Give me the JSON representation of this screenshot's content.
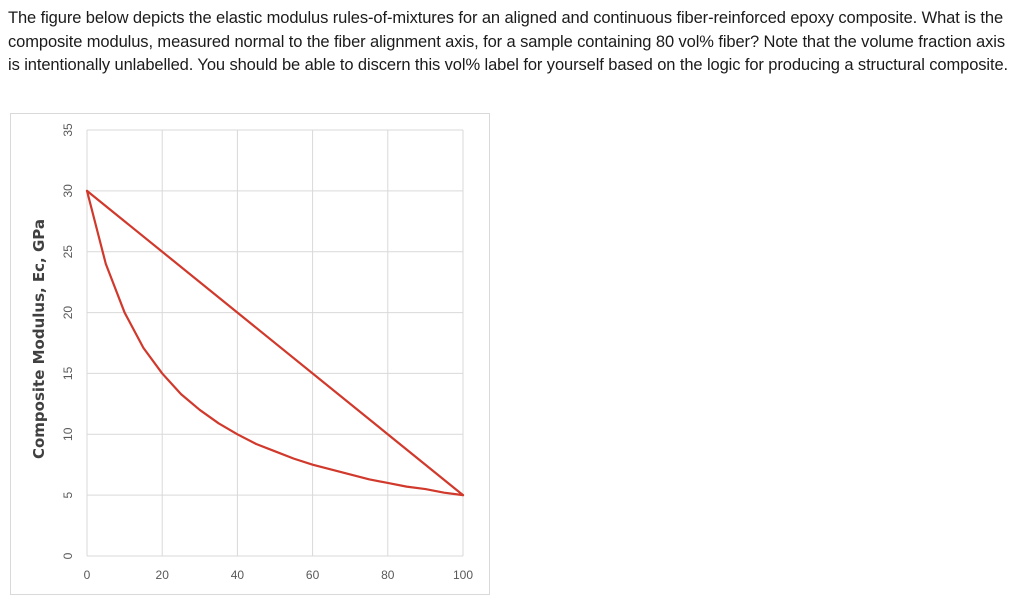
{
  "question": {
    "text": "The figure below depicts the elastic modulus rules-of-mixtures for an aligned and continuous fiber-reinforced epoxy composite. What is the composite modulus, measured normal to the fiber alignment axis, for a sample containing 80 vol% fiber? Note that the volume fraction axis is intentionally unlabelled. You should be able to discern this vol% label for yourself based on the logic for producing a structural composite."
  },
  "colors": {
    "series": "#d0392b",
    "grid": "#d9d9d9",
    "tick_text": "#595959",
    "axis_label": "#404040"
  },
  "chart_data": {
    "type": "line",
    "title": "",
    "xlabel": "",
    "ylabel": "Composite Modulus, Ec, GPa",
    "xlim": [
      0,
      100
    ],
    "ylim": [
      0,
      35
    ],
    "x_ticks": [
      0,
      20,
      40,
      60,
      80,
      100
    ],
    "y_ticks": [
      0,
      5,
      10,
      15,
      20,
      25,
      30,
      35
    ],
    "x_tick_labels": [
      "0",
      "20",
      "40",
      "60",
      "80",
      "100"
    ],
    "y_tick_labels": [
      "0",
      "5",
      "10",
      "15",
      "20",
      "25",
      "30",
      "35"
    ],
    "grid": true,
    "legend": "none",
    "series": [
      {
        "x": [
          0,
          100
        ],
        "y": [
          30,
          5
        ]
      },
      {
        "x": [
          0,
          5,
          10,
          15,
          20,
          25,
          30,
          35,
          40,
          45,
          50,
          55,
          60,
          65,
          70,
          75,
          80,
          85,
          90,
          95,
          100
        ],
        "y": [
          30,
          24.0,
          20.0,
          17.1,
          15.0,
          13.3,
          12.0,
          10.9,
          10.0,
          9.2,
          8.6,
          8.0,
          7.5,
          7.1,
          6.7,
          6.3,
          6.0,
          5.7,
          5.5,
          5.2,
          5.0
        ]
      }
    ]
  }
}
